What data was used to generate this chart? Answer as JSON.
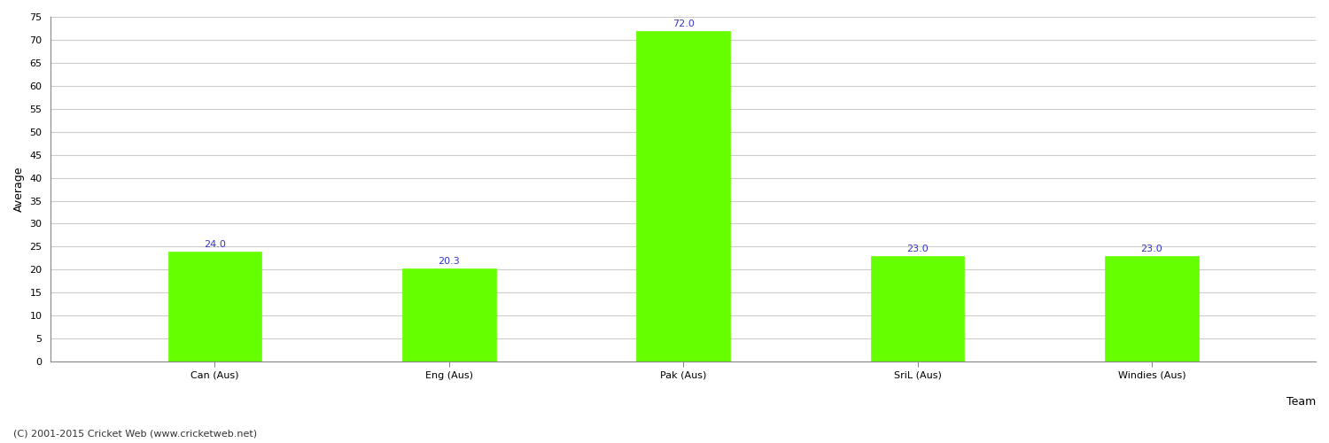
{
  "categories": [
    "Can (Aus)",
    "Eng (Aus)",
    "Pak (Aus)",
    "SriL (Aus)",
    "Windies (Aus)"
  ],
  "values": [
    24.0,
    20.3,
    72.0,
    23.0,
    23.0
  ],
  "bar_color": "#66ff00",
  "bar_edge_color": "#66ff00",
  "value_label_color": "#3333cc",
  "value_label_fontsize": 8,
  "xlabel": "Team",
  "ylabel": "Average",
  "ylim": [
    0,
    75
  ],
  "yticks": [
    0,
    5,
    10,
    15,
    20,
    25,
    30,
    35,
    40,
    45,
    50,
    55,
    60,
    65,
    70,
    75
  ],
  "grid_color": "#cccccc",
  "background_color": "#ffffff",
  "footer_text": "(C) 2001-2015 Cricket Web (www.cricketweb.net)",
  "footer_fontsize": 8,
  "footer_color": "#333333",
  "axis_label_fontsize": 9,
  "tick_fontsize": 8,
  "bar_width": 0.4
}
